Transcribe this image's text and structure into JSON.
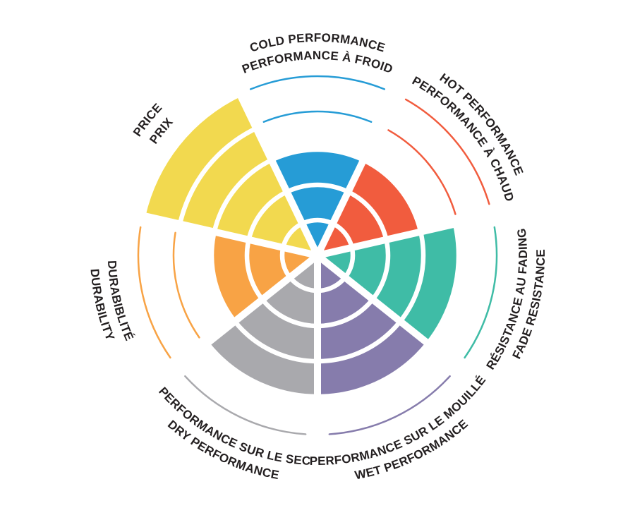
{
  "chart_data": {
    "type": "radial_rating",
    "title": "",
    "description": "Tire performance rating wheel: 7 sectors each rated on 5 concentric levels; filled wedge height = rating, thin arcs mark unfilled levels",
    "levels_max": 5,
    "background_color": "#FFFFFF",
    "label_color": "#231F20",
    "divider_color": "#FFFFFF",
    "legend": "none",
    "grid": "concentric rings, 5 levels",
    "sectors": [
      {
        "id": "cold-performance",
        "label_en": "COLD PERFORMANCE",
        "label_fr": "PERFORMANCE À FROID",
        "value": 3,
        "color": "#269CD6",
        "center_angle_deg": 0
      },
      {
        "id": "hot-performance",
        "label_en": "HOT PERFORMANCE",
        "label_fr": "PERFORMANCE À CHAUD",
        "value": 3,
        "color": "#F15C3E",
        "center_angle_deg": 51.43
      },
      {
        "id": "fade-resistance",
        "label_en": "FADE RESISTANCE",
        "label_fr": "RÉSISTANCE AU FADING",
        "value": 4,
        "color": "#3FBCA6",
        "center_angle_deg": 102.86
      },
      {
        "id": "wet-performance",
        "label_en": "WET PERFORMANCE",
        "label_fr": "PERFORMANCE SUR LE MOUILLÉ",
        "value": 4,
        "color": "#867CAC",
        "center_angle_deg": 154.29
      },
      {
        "id": "dry-performance",
        "label_en": "DRY PERFORMANCE",
        "label_fr": "PERFORMANCE SUR LE SEC",
        "value": 4,
        "color": "#A9A9AD",
        "center_angle_deg": 205.71
      },
      {
        "id": "durability",
        "label_en": "DURABILITY",
        "label_fr": "DURABIBLITÉ",
        "value": 3,
        "color": "#F8A345",
        "center_angle_deg": 257.14
      },
      {
        "id": "price",
        "label_en": "PRICE",
        "label_fr": "PRIX",
        "value": 5,
        "color": "#F2D94F",
        "center_angle_deg": 308.57
      }
    ]
  }
}
